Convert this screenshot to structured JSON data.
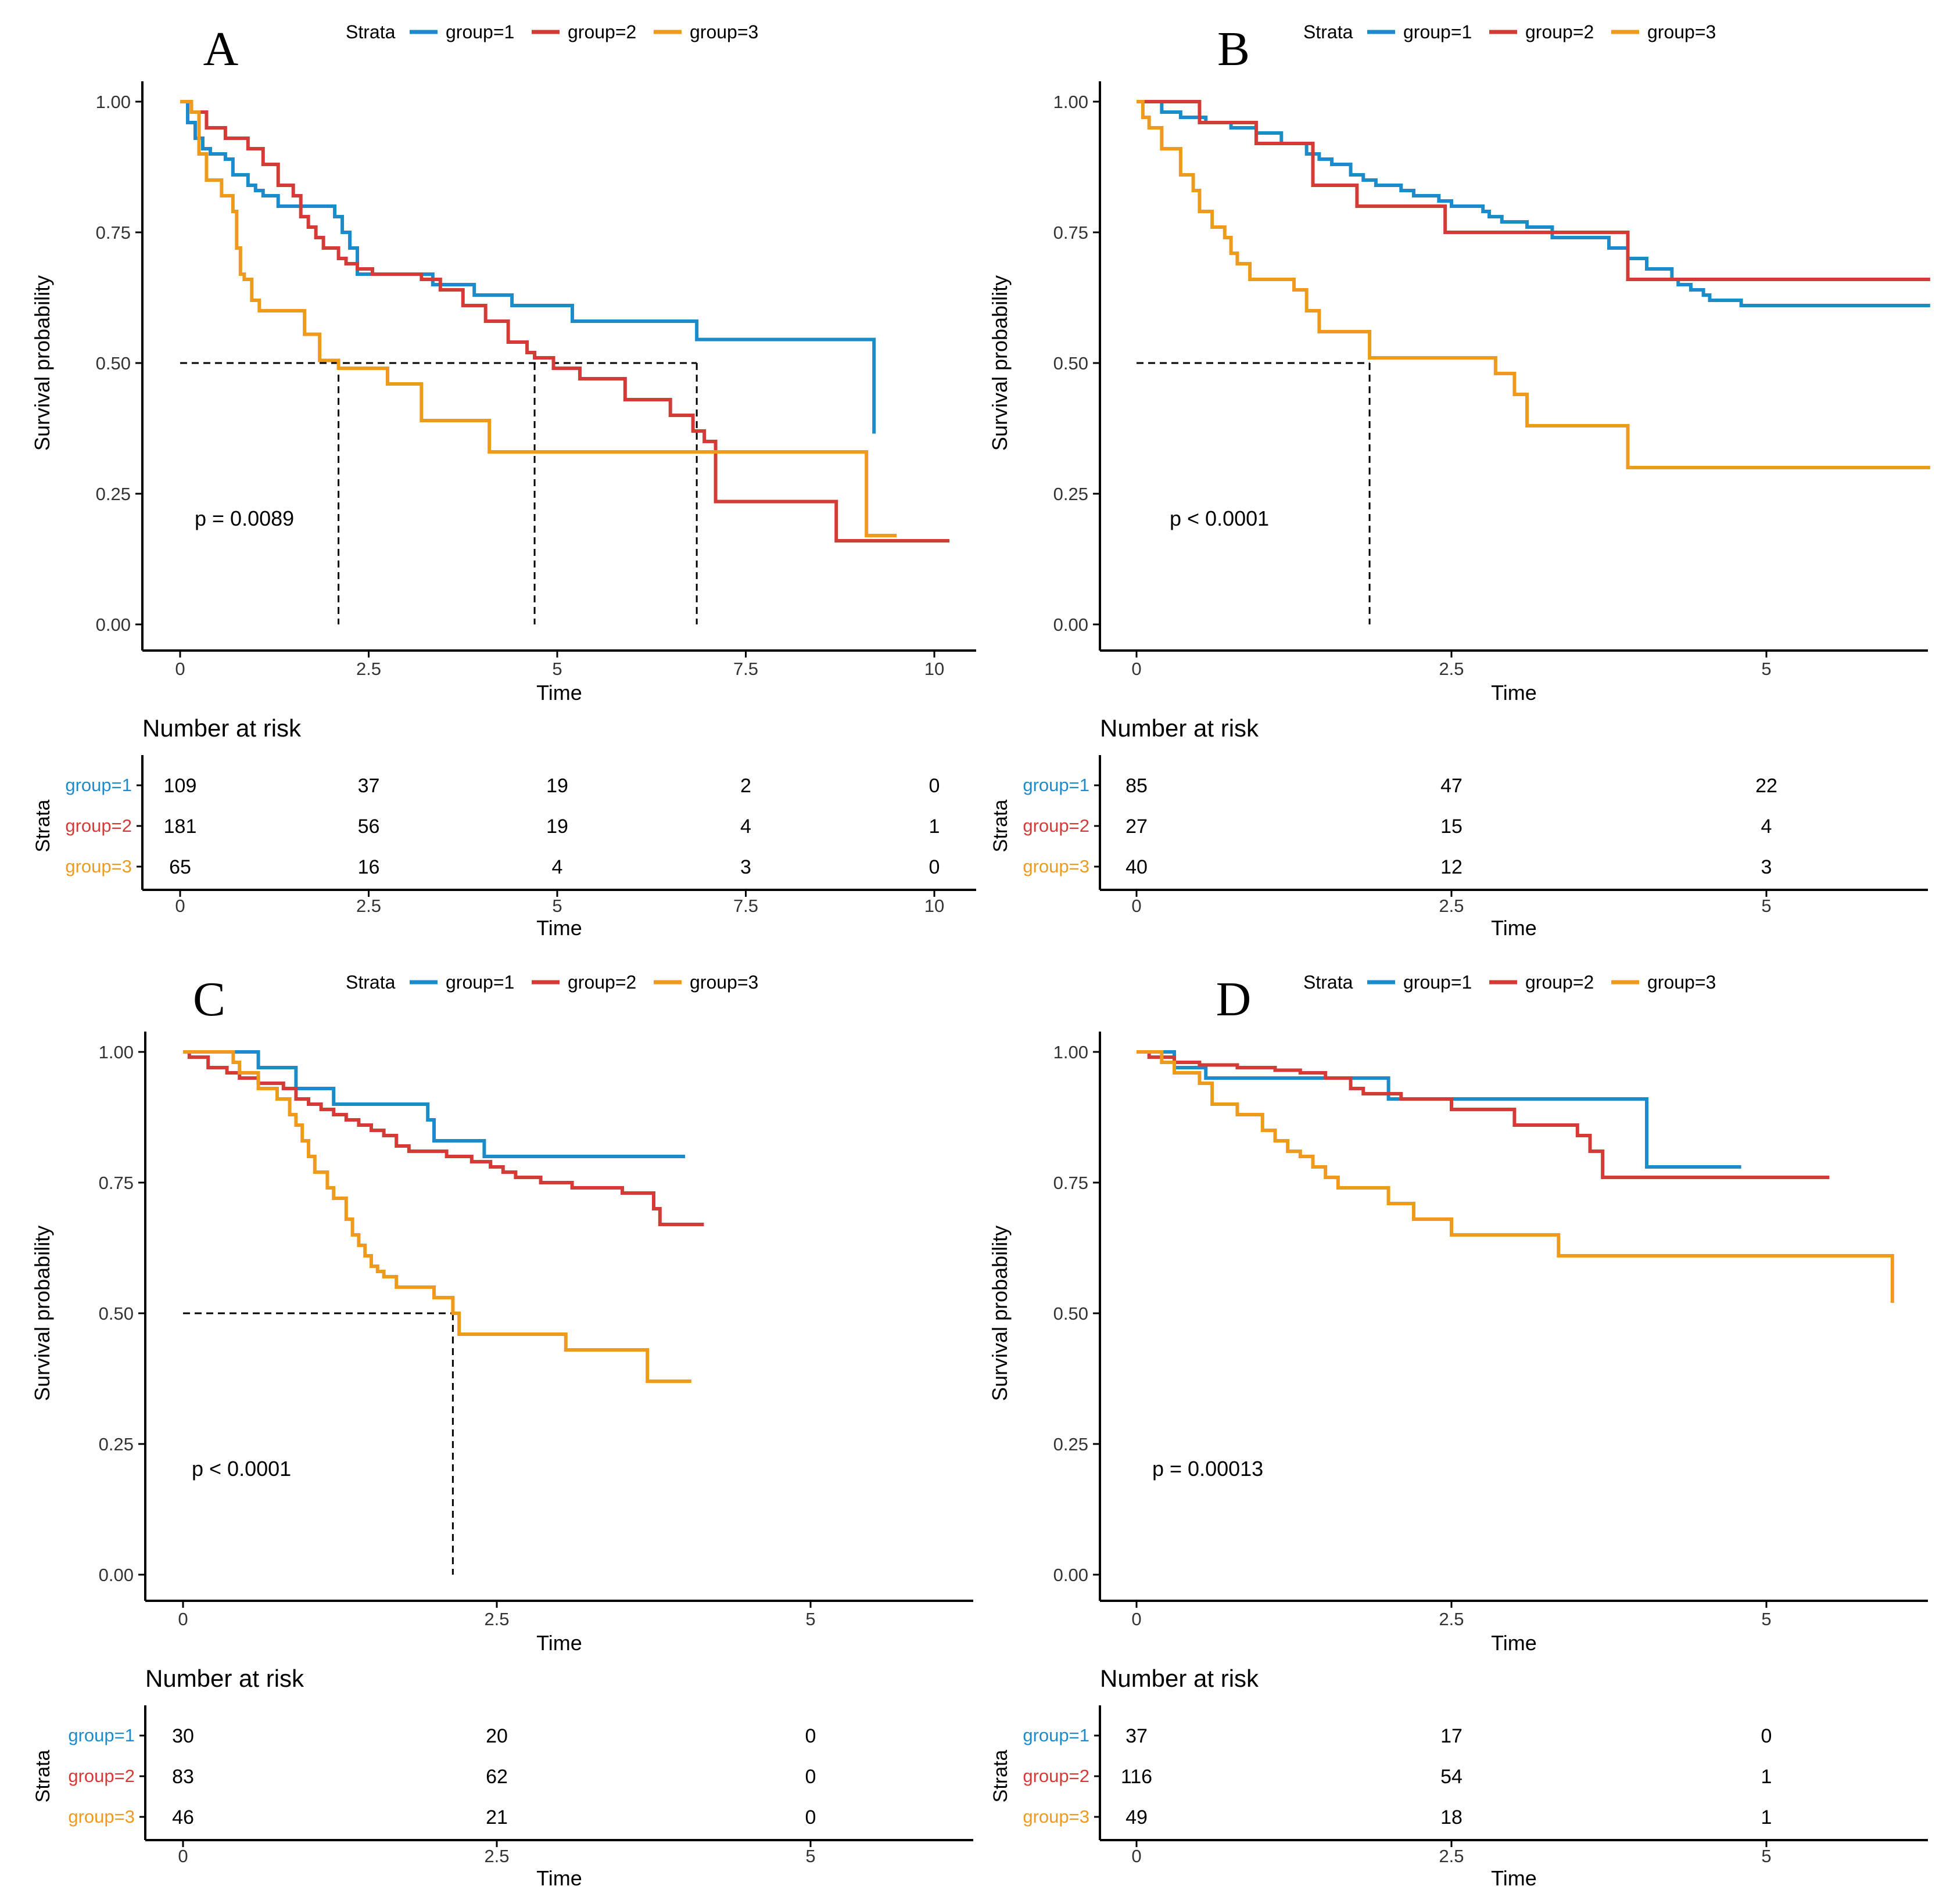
{
  "figure": {
    "legend_title": "Strata",
    "y_axis_title": "Survival probability",
    "x_axis_title": "Time",
    "risk_title": "Number at risk",
    "risk_y_title": "Strata",
    "y_ticks": [
      "0.00",
      "0.25",
      "0.50",
      "0.75",
      "1.00"
    ],
    "group_names": [
      "group=1",
      "group=2",
      "group=3"
    ],
    "colors": {
      "group1": "#1B8CC9",
      "group2": "#D43A36",
      "group3": "#EE9A1C",
      "median": "#000000",
      "axis": "#000000"
    }
  },
  "chart_data": [
    {
      "type": "line",
      "panel": "A",
      "pvalue": "p = 0.0089",
      "xlim": [
        -0.5,
        10.5
      ],
      "ylim": [
        0,
        1
      ],
      "x_ticks": [
        0,
        2.5,
        5,
        7.5,
        10
      ],
      "x_tick_labels": [
        "0",
        "2.5",
        "5",
        "7.5",
        "10"
      ],
      "median_lines": [
        {
          "x": 6.85,
          "y": 0.5
        },
        {
          "x": 4.7,
          "y": 0.5
        },
        {
          "x": 2.1,
          "y": 0.5
        }
      ],
      "series": [
        {
          "name": "group=1",
          "x": [
            0,
            0.1,
            0.2,
            0.3,
            0.4,
            0.5,
            0.6,
            0.7,
            0.8,
            0.9,
            1.0,
            1.1,
            1.2,
            1.3,
            1.95,
            2.05,
            2.15,
            2.25,
            2.35,
            3.0,
            3.35,
            3.9,
            4.4,
            5.2,
            6.85,
            9.2
          ],
          "y": [
            1.0,
            0.96,
            0.93,
            0.91,
            0.9,
            0.9,
            0.89,
            0.86,
            0.86,
            0.84,
            0.83,
            0.82,
            0.82,
            0.8,
            0.8,
            0.78,
            0.75,
            0.72,
            0.67,
            0.67,
            0.65,
            0.63,
            0.61,
            0.58,
            0.545,
            0.365
          ]
        },
        {
          "name": "group=2",
          "x": [
            0,
            0.15,
            0.35,
            0.6,
            0.9,
            1.1,
            1.3,
            1.5,
            1.6,
            1.7,
            1.8,
            1.9,
            2.0,
            2.1,
            2.2,
            2.35,
            2.55,
            3.2,
            3.45,
            3.75,
            4.05,
            4.35,
            4.6,
            4.7,
            4.95,
            5.3,
            5.9,
            6.5,
            6.8,
            6.95,
            7.1,
            8.7,
            10.2
          ],
          "y": [
            1.0,
            0.98,
            0.95,
            0.93,
            0.91,
            0.88,
            0.84,
            0.82,
            0.78,
            0.76,
            0.74,
            0.72,
            0.72,
            0.7,
            0.69,
            0.68,
            0.67,
            0.66,
            0.64,
            0.61,
            0.58,
            0.54,
            0.52,
            0.51,
            0.49,
            0.47,
            0.43,
            0.4,
            0.37,
            0.35,
            0.235,
            0.16,
            0.16
          ]
        },
        {
          "name": "group=3",
          "x": [
            0,
            0.15,
            0.25,
            0.35,
            0.55,
            0.7,
            0.75,
            0.8,
            0.85,
            0.95,
            1.05,
            1.25,
            1.65,
            1.85,
            2.1,
            2.75,
            3.2,
            4.1,
            9.1,
            9.5
          ],
          "y": [
            1.0,
            0.98,
            0.9,
            0.85,
            0.82,
            0.79,
            0.72,
            0.67,
            0.66,
            0.62,
            0.6,
            0.6,
            0.555,
            0.505,
            0.49,
            0.46,
            0.39,
            0.33,
            0.17,
            0.17
          ]
        }
      ],
      "risk_table": {
        "x_ticks": [
          0,
          2.5,
          5,
          7.5,
          10
        ],
        "rows": [
          {
            "name": "group=1",
            "values": [
              "109",
              "37",
              "19",
              "2",
              "0"
            ]
          },
          {
            "name": "group=2",
            "values": [
              "181",
              "56",
              "19",
              "4",
              "1"
            ]
          },
          {
            "name": "group=3",
            "values": [
              "65",
              "16",
              "4",
              "3",
              "0"
            ]
          }
        ]
      }
    },
    {
      "type": "line",
      "panel": "B",
      "pvalue": "p < 0.0001",
      "xlim": [
        -0.3,
        6.3
      ],
      "ylim": [
        0,
        1
      ],
      "x_ticks": [
        0,
        2.5,
        5
      ],
      "x_tick_labels": [
        "0",
        "2.5",
        "5"
      ],
      "median_lines": [
        {
          "x": 1.85,
          "y": 0.5
        }
      ],
      "series": [
        {
          "name": "group=1",
          "x": [
            0,
            0.2,
            0.35,
            0.55,
            0.75,
            0.95,
            1.15,
            1.35,
            1.45,
            1.55,
            1.7,
            1.8,
            1.9,
            2.1,
            2.2,
            2.4,
            2.5,
            2.75,
            2.8,
            2.9,
            3.1,
            3.3,
            3.75,
            3.9,
            4.05,
            4.25,
            4.3,
            4.4,
            4.5,
            4.55,
            4.8,
            5.4,
            6.3
          ],
          "y": [
            1.0,
            0.98,
            0.97,
            0.96,
            0.95,
            0.94,
            0.92,
            0.9,
            0.89,
            0.88,
            0.86,
            0.85,
            0.84,
            0.83,
            0.82,
            0.81,
            0.8,
            0.79,
            0.78,
            0.77,
            0.76,
            0.74,
            0.72,
            0.7,
            0.68,
            0.66,
            0.65,
            0.64,
            0.63,
            0.62,
            0.61,
            0.61,
            0.61
          ]
        },
        {
          "name": "group=2",
          "x": [
            0,
            0.45,
            0.5,
            0.9,
            0.95,
            1.4,
            1.4,
            1.7,
            1.75,
            2.4,
            2.45,
            3.85,
            3.9,
            6.3
          ],
          "y": [
            1.0,
            1.0,
            0.96,
            0.96,
            0.92,
            0.92,
            0.84,
            0.84,
            0.8,
            0.8,
            0.75,
            0.75,
            0.66,
            0.66
          ]
        },
        {
          "name": "group=3",
          "x": [
            0,
            0.05,
            0.1,
            0.2,
            0.35,
            0.45,
            0.5,
            0.6,
            0.7,
            0.75,
            0.8,
            0.9,
            1.25,
            1.35,
            1.45,
            1.85,
            2.85,
            3.0,
            3.1,
            3.5,
            3.9,
            6.3
          ],
          "y": [
            1.0,
            0.97,
            0.95,
            0.91,
            0.86,
            0.83,
            0.79,
            0.76,
            0.74,
            0.71,
            0.69,
            0.66,
            0.64,
            0.6,
            0.56,
            0.51,
            0.48,
            0.44,
            0.38,
            0.38,
            0.3,
            0.3
          ]
        }
      ],
      "risk_table": {
        "x_ticks": [
          0,
          2.5,
          5
        ],
        "rows": [
          {
            "name": "group=1",
            "values": [
              "85",
              "47",
              "22"
            ]
          },
          {
            "name": "group=2",
            "values": [
              "27",
              "15",
              "4"
            ]
          },
          {
            "name": "group=3",
            "values": [
              "40",
              "12",
              "3"
            ]
          }
        ]
      }
    },
    {
      "type": "line",
      "panel": "C",
      "pvalue": "p < 0.0001",
      "xlim": [
        -0.3,
        6.3
      ],
      "ylim": [
        0,
        1
      ],
      "x_ticks": [
        0,
        2.5,
        5
      ],
      "x_tick_labels": [
        "0",
        "2.5",
        "5"
      ],
      "median_lines": [
        {
          "x": 2.15,
          "y": 0.5
        }
      ],
      "series": [
        {
          "name": "group=1",
          "x": [
            0,
            0.55,
            0.6,
            0.85,
            0.9,
            1.1,
            1.2,
            1.9,
            1.95,
            2.0,
            2.35,
            2.4,
            4.0
          ],
          "y": [
            1.0,
            1.0,
            0.97,
            0.97,
            0.93,
            0.93,
            0.9,
            0.9,
            0.87,
            0.83,
            0.83,
            0.8,
            0.8
          ]
        },
        {
          "name": "group=2",
          "x": [
            0,
            0.05,
            0.2,
            0.35,
            0.45,
            0.6,
            0.8,
            0.9,
            1.0,
            1.1,
            1.2,
            1.3,
            1.4,
            1.5,
            1.6,
            1.7,
            1.8,
            1.9,
            2.0,
            2.1,
            2.3,
            2.45,
            2.55,
            2.65,
            2.85,
            3.1,
            3.3,
            3.5,
            3.75,
            3.8,
            4.15
          ],
          "y": [
            1.0,
            0.99,
            0.97,
            0.96,
            0.95,
            0.94,
            0.93,
            0.91,
            0.9,
            0.89,
            0.88,
            0.87,
            0.86,
            0.85,
            0.84,
            0.82,
            0.81,
            0.81,
            0.81,
            0.8,
            0.79,
            0.78,
            0.77,
            0.76,
            0.75,
            0.74,
            0.74,
            0.73,
            0.7,
            0.67,
            0.67
          ]
        },
        {
          "name": "group=3",
          "x": [
            0,
            0.1,
            0.4,
            0.45,
            0.6,
            0.75,
            0.85,
            0.9,
            0.95,
            1.0,
            1.05,
            1.15,
            1.2,
            1.3,
            1.35,
            1.4,
            1.45,
            1.5,
            1.55,
            1.6,
            1.7,
            2.0,
            2.15,
            2.2,
            3.05,
            3.7,
            4.05
          ],
          "y": [
            1.0,
            1.0,
            0.98,
            0.96,
            0.93,
            0.91,
            0.88,
            0.86,
            0.83,
            0.8,
            0.77,
            0.74,
            0.72,
            0.68,
            0.65,
            0.63,
            0.61,
            0.59,
            0.58,
            0.57,
            0.55,
            0.53,
            0.5,
            0.46,
            0.43,
            0.37,
            0.37
          ]
        }
      ],
      "risk_table": {
        "x_ticks": [
          0,
          2.5,
          5
        ],
        "rows": [
          {
            "name": "group=1",
            "values": [
              "30",
              "20",
              "0"
            ]
          },
          {
            "name": "group=2",
            "values": [
              "83",
              "62",
              "0"
            ]
          },
          {
            "name": "group=3",
            "values": [
              "46",
              "21",
              "0"
            ]
          }
        ]
      }
    },
    {
      "type": "line",
      "panel": "D",
      "pvalue": "p = 0.00013",
      "xlim": [
        -0.3,
        6.3
      ],
      "ylim": [
        0,
        1
      ],
      "x_ticks": [
        0,
        2.5,
        5
      ],
      "x_tick_labels": [
        "0",
        "2.5",
        "5"
      ],
      "median_lines": [],
      "series": [
        {
          "name": "group=1",
          "x": [
            0,
            0.25,
            0.3,
            0.5,
            0.55,
            1.95,
            2.0,
            4.0,
            4.05,
            4.8
          ],
          "y": [
            1.0,
            1.0,
            0.97,
            0.97,
            0.95,
            0.95,
            0.91,
            0.91,
            0.78,
            0.78
          ]
        },
        {
          "name": "group=2",
          "x": [
            0,
            0.1,
            0.3,
            0.5,
            0.8,
            1.1,
            1.3,
            1.5,
            1.7,
            1.8,
            2.1,
            2.5,
            3.0,
            3.5,
            3.6,
            3.7,
            5.5
          ],
          "y": [
            1.0,
            0.99,
            0.98,
            0.975,
            0.97,
            0.965,
            0.96,
            0.95,
            0.93,
            0.92,
            0.91,
            0.89,
            0.86,
            0.84,
            0.81,
            0.76,
            0.76
          ]
        },
        {
          "name": "group=3",
          "x": [
            0,
            0.2,
            0.3,
            0.5,
            0.6,
            0.8,
            1.0,
            1.1,
            1.2,
            1.3,
            1.4,
            1.5,
            1.6,
            2.0,
            2.2,
            2.5,
            3.35,
            6.0
          ],
          "y": [
            1.0,
            0.98,
            0.96,
            0.94,
            0.9,
            0.88,
            0.85,
            0.83,
            0.81,
            0.8,
            0.78,
            0.76,
            0.74,
            0.71,
            0.68,
            0.65,
            0.61,
            0.52
          ]
        }
      ],
      "risk_table": {
        "x_ticks": [
          0,
          2.5,
          5
        ],
        "rows": [
          {
            "name": "group=1",
            "values": [
              "37",
              "17",
              "0"
            ]
          },
          {
            "name": "group=2",
            "values": [
              "116",
              "54",
              "1"
            ]
          },
          {
            "name": "group=3",
            "values": [
              "49",
              "18",
              "1"
            ]
          }
        ]
      }
    }
  ]
}
